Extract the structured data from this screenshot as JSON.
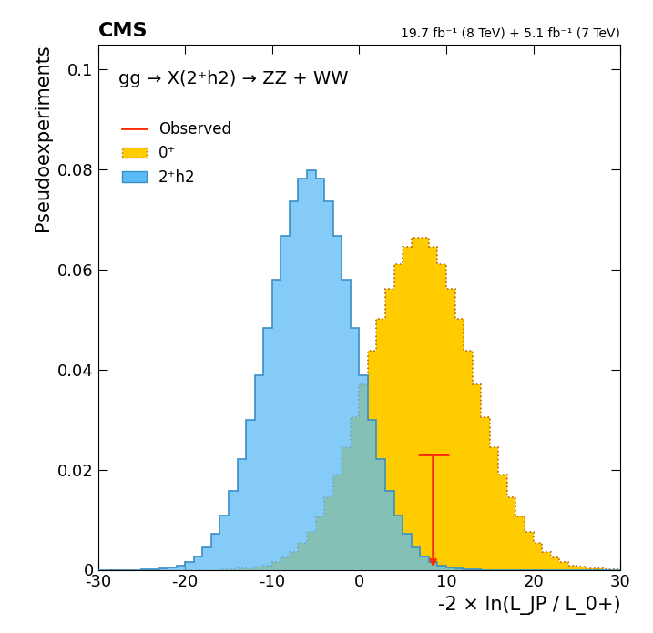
{
  "chart_data": {
    "type": "histogram",
    "title": "CMS",
    "subtitle": "19.7 fb⁻¹ (8 TeV) + 5.1 fb⁻¹ (7 TeV)",
    "annotation": "gg → X(2⁺h2) → ZZ + WW",
    "x_label": "-2 × ln(L_JP / L_0+)",
    "y_label": "Pseudoexperiments",
    "bins": [
      -30,
      -29,
      -28,
      -27,
      -26,
      -25,
      -24,
      -23,
      -22,
      -21,
      -20,
      -19,
      -18,
      -17,
      -16,
      -15,
      -14,
      -13,
      -12,
      -11,
      -10,
      -9,
      -8,
      -7,
      -6,
      -5,
      -4,
      -3,
      -2,
      -1,
      0,
      1,
      2,
      3,
      4,
      5,
      6,
      7,
      8,
      9,
      10,
      11,
      12,
      13,
      14,
      15,
      16,
      17,
      18,
      19,
      20,
      21,
      22,
      23,
      24,
      25,
      26,
      27,
      28,
      29,
      30
    ],
    "series": [
      {
        "name": "0⁺",
        "color": "#ffcc00",
        "line_style": "dotted",
        "values": [
          0,
          0,
          0,
          0,
          0,
          0,
          0,
          0,
          0,
          0,
          0,
          0,
          0,
          0,
          0.0001,
          0.0001,
          0.0002,
          0.0003,
          0.0006,
          0.0009,
          0.0015,
          0.0024,
          0.0036,
          0.0053,
          0.0076,
          0.0106,
          0.0144,
          0.019,
          0.0244,
          0.0305,
          0.037,
          0.0437,
          0.0502,
          0.0561,
          0.061,
          0.0645,
          0.0663,
          0.0663,
          0.0645,
          0.061,
          0.0561,
          0.0502,
          0.0437,
          0.037,
          0.0305,
          0.0244,
          0.019,
          0.0144,
          0.0106,
          0.0076,
          0.0053,
          0.0036,
          0.0024,
          0.0015,
          0.0009,
          0.0006,
          0.0003,
          0.0002,
          0.0001,
          0.0001
        ]
      },
      {
        "name": "2⁺h2",
        "color": "#5bbcf5",
        "line_style": "solid",
        "values": [
          0,
          0,
          0,
          0,
          0,
          0.0001,
          0.0001,
          0.0002,
          0.0005,
          0.0009,
          0.0016,
          0.0027,
          0.0045,
          0.0071,
          0.0108,
          0.0158,
          0.0222,
          0.03,
          0.0388,
          0.0484,
          0.0579,
          0.0667,
          0.0737,
          0.0782,
          0.0798,
          0.0782,
          0.0737,
          0.0667,
          0.0579,
          0.0484,
          0.0388,
          0.03,
          0.0222,
          0.0158,
          0.0108,
          0.0071,
          0.0045,
          0.0027,
          0.0016,
          0.0009,
          0.0005,
          0.0002,
          0.0001,
          0.0001,
          0,
          0,
          0,
          0,
          0,
          0,
          0,
          0,
          0,
          0,
          0,
          0,
          0,
          0,
          0,
          0
        ]
      }
    ],
    "observed": {
      "name": "Observed",
      "x": 8.5,
      "y": 0.023,
      "color": "#ff2a00"
    },
    "xlim": [
      -30,
      30
    ],
    "xticks": [
      -30,
      -20,
      -10,
      0,
      10,
      20,
      30
    ],
    "ylim": [
      0,
      0.105
    ],
    "yticks": [
      0,
      0.02,
      0.04,
      0.06,
      0.08,
      0.1
    ],
    "legend": "upper left",
    "grid": false
  }
}
